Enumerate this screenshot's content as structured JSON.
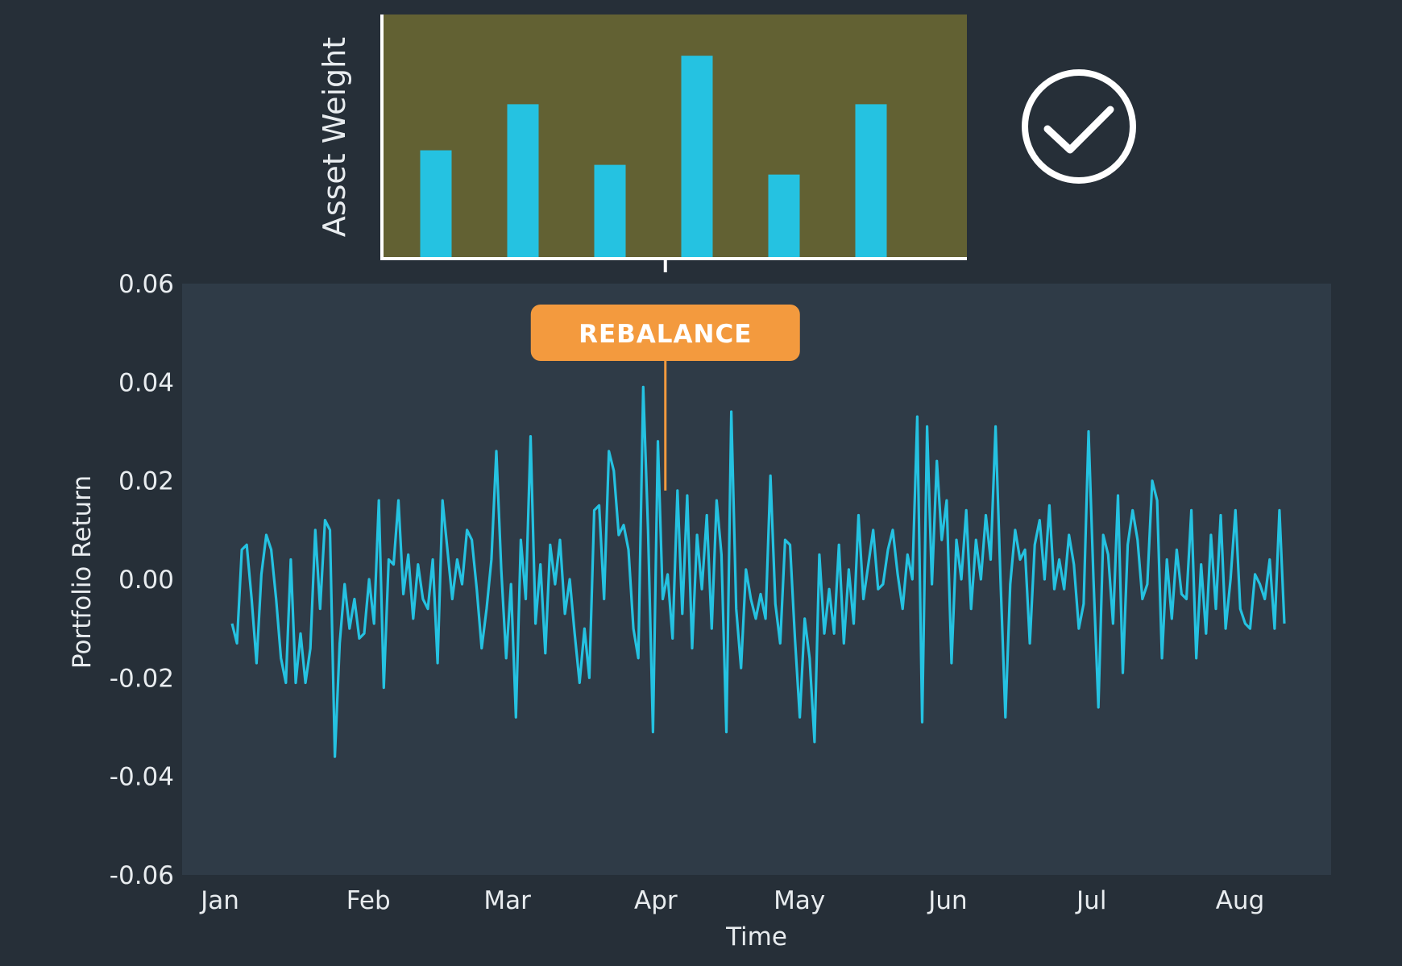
{
  "colors": {
    "background": "#262f38",
    "plot_area": "#2f3b47",
    "weight_panel": "#626133",
    "series": "#25c2e1",
    "rebalance": "#f39a3e",
    "axis_text": "#e8ecef",
    "white": "#ffffff"
  },
  "icons": {
    "check": "check-circle-icon"
  },
  "chart_data": [
    {
      "type": "bar",
      "ylabel": "Asset Weight",
      "categories": [
        "",
        "",
        "",
        "",
        "",
        ""
      ],
      "values": [
        0.44,
        0.63,
        0.38,
        0.83,
        0.34,
        0.63
      ],
      "ylim": [
        0,
        1
      ]
    },
    {
      "type": "line",
      "xlabel": "Time",
      "ylabel": "Portfolio Return",
      "ylim": [
        -0.06,
        0.06
      ],
      "yticks": [
        0.06,
        0.04,
        0.02,
        0.0,
        -0.02,
        -0.04,
        -0.06
      ],
      "ytick_labels": [
        "0.06",
        "0.04",
        "0.02",
        "0.00",
        "-0.02",
        "-0.04",
        "-0.06"
      ],
      "xlim": [
        "2016-01-01",
        "2016-08-24"
      ],
      "xticks": [
        "2016-01-01",
        "2016-02-01",
        "2016-03-01",
        "2016-04-01",
        "2016-05-01",
        "2016-06-01",
        "2016-07-01",
        "2016-08-01"
      ],
      "xtick_labels": [
        "Jan",
        "Feb",
        "Mar",
        "Apr",
        "May",
        "Jun",
        "Jul",
        "Aug"
      ],
      "annotation": {
        "label": "REBALANCE",
        "x": "2016-04-03"
      },
      "grid": false,
      "series": [
        {
          "values": [
            -0.009,
            -0.013,
            0.006,
            0.007,
            -0.004,
            -0.017,
            0.001,
            0.009,
            0.006,
            -0.004,
            -0.016,
            -0.021,
            0.004,
            -0.021,
            -0.011,
            -0.021,
            -0.014,
            0.01,
            -0.006,
            0.012,
            0.01,
            -0.036,
            -0.013,
            -0.001,
            -0.01,
            -0.004,
            -0.012,
            -0.011,
            0.0,
            -0.009,
            0.016,
            -0.022,
            0.004,
            0.003,
            0.016,
            -0.003,
            0.005,
            -0.008,
            0.003,
            -0.004,
            -0.006,
            0.004,
            -0.017,
            0.016,
            0.006,
            -0.004,
            0.004,
            -0.001,
            0.01,
            0.008,
            -0.002,
            -0.014,
            -0.006,
            0.004,
            0.026,
            0.002,
            -0.016,
            -0.001,
            -0.028,
            0.008,
            -0.004,
            0.029,
            -0.009,
            0.003,
            -0.015,
            0.007,
            -0.001,
            0.008,
            -0.007,
            0.0,
            -0.011,
            -0.021,
            -0.01,
            -0.02,
            0.014,
            0.015,
            -0.004,
            0.026,
            0.022,
            0.009,
            0.011,
            0.006,
            -0.01,
            -0.016,
            0.039,
            0.01,
            -0.031,
            0.028,
            -0.004,
            0.001,
            -0.012,
            0.018,
            -0.007,
            0.017,
            -0.014,
            0.009,
            -0.002,
            0.013,
            -0.01,
            0.016,
            0.005,
            -0.031,
            0.034,
            -0.006,
            -0.018,
            0.002,
            -0.004,
            -0.008,
            -0.003,
            -0.008,
            0.021,
            -0.005,
            -0.013,
            0.008,
            0.007,
            -0.012,
            -0.028,
            -0.008,
            -0.016,
            -0.033,
            0.005,
            -0.011,
            -0.002,
            -0.011,
            0.007,
            -0.013,
            0.002,
            -0.009,
            0.013,
            -0.004,
            0.003,
            0.01,
            -0.002,
            -0.001,
            0.006,
            0.01,
            0.001,
            -0.006,
            0.005,
            0.0,
            0.033,
            -0.029,
            0.031,
            -0.001,
            0.024,
            0.008,
            0.016,
            -0.017,
            0.008,
            0.0,
            0.014,
            -0.006,
            0.008,
            0.0,
            0.013,
            0.004,
            0.031,
            0.0,
            -0.028,
            -0.001,
            0.01,
            0.004,
            0.006,
            -0.013,
            0.007,
            0.012,
            0.0,
            0.015,
            -0.002,
            0.004,
            -0.002,
            0.009,
            0.003,
            -0.01,
            -0.005,
            0.03,
            0.0,
            -0.026,
            0.009,
            0.005,
            -0.009,
            0.017,
            -0.019,
            0.007,
            0.014,
            0.008,
            -0.004,
            -0.001,
            0.02,
            0.016,
            -0.016,
            0.004,
            -0.008,
            0.006,
            -0.003,
            -0.004,
            0.014,
            -0.016,
            0.003,
            -0.011,
            0.009,
            -0.006,
            0.013,
            -0.01,
            0.0,
            0.014,
            -0.006,
            -0.009,
            -0.01,
            0.001,
            -0.001,
            -0.004,
            0.004,
            -0.01,
            0.014,
            -0.009
          ]
        }
      ]
    }
  ]
}
